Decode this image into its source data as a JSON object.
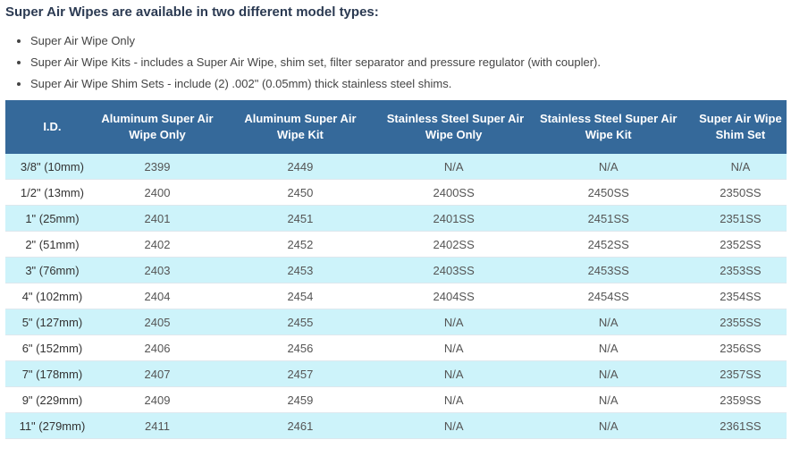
{
  "intro": {
    "heading": "Super Air Wipes are available in two different model types:",
    "bullets": [
      "Super Air Wipe Only",
      "Super Air Wipe Kits - includes a Super Air Wipe, shim set, filter separator and pressure regulator (with coupler).",
      "Super Air Wipe Shim Sets - include (2) .002\" (0.05mm) thick stainless steel shims."
    ]
  },
  "table": {
    "columns": [
      "I.D.",
      "Aluminum Super Air\nWipe Only",
      "Aluminum Super Air\nWipe Kit",
      "Stainless Steel Super Air\nWipe Only",
      "Stainless Steel Super Air\nWipe Kit",
      "Super Air Wipe\nShim Set"
    ],
    "rows": [
      {
        "id": "3/8\" (10mm)",
        "cells": [
          "2399",
          "2449",
          "N/A",
          "N/A",
          "N/A"
        ]
      },
      {
        "id": "1/2\" (13mm)",
        "cells": [
          "2400",
          "2450",
          "2400SS",
          "2450SS",
          "2350SS"
        ]
      },
      {
        "id": "1\" (25mm)",
        "cells": [
          "2401",
          "2451",
          "2401SS",
          "2451SS",
          "2351SS"
        ]
      },
      {
        "id": "2\" (51mm)",
        "cells": [
          "2402",
          "2452",
          "2402SS",
          "2452SS",
          "2352SS"
        ]
      },
      {
        "id": "3\" (76mm)",
        "cells": [
          "2403",
          "2453",
          "2403SS",
          "2453SS",
          "2353SS"
        ]
      },
      {
        "id": "4\" (102mm)",
        "cells": [
          "2404",
          "2454",
          "2404SS",
          "2454SS",
          "2354SS"
        ]
      },
      {
        "id": "5\" (127mm)",
        "cells": [
          "2405",
          "2455",
          "N/A",
          "N/A",
          "2355SS"
        ]
      },
      {
        "id": "6\" (152mm)",
        "cells": [
          "2406",
          "2456",
          "N/A",
          "N/A",
          "2356SS"
        ]
      },
      {
        "id": "7\" (178mm)",
        "cells": [
          "2407",
          "2457",
          "N/A",
          "N/A",
          "2357SS"
        ]
      },
      {
        "id": "9\" (229mm)",
        "cells": [
          "2409",
          "2459",
          "N/A",
          "N/A",
          "2359SS"
        ]
      },
      {
        "id": "11\" (279mm)",
        "cells": [
          "2411",
          "2461",
          "N/A",
          "N/A",
          "2361SS"
        ]
      }
    ]
  },
  "colors": {
    "header_bg": "#35699a",
    "stripe_bg": "#cdf3fa",
    "heading_text": "#2b3a52",
    "row_border": "#dde8ee"
  }
}
